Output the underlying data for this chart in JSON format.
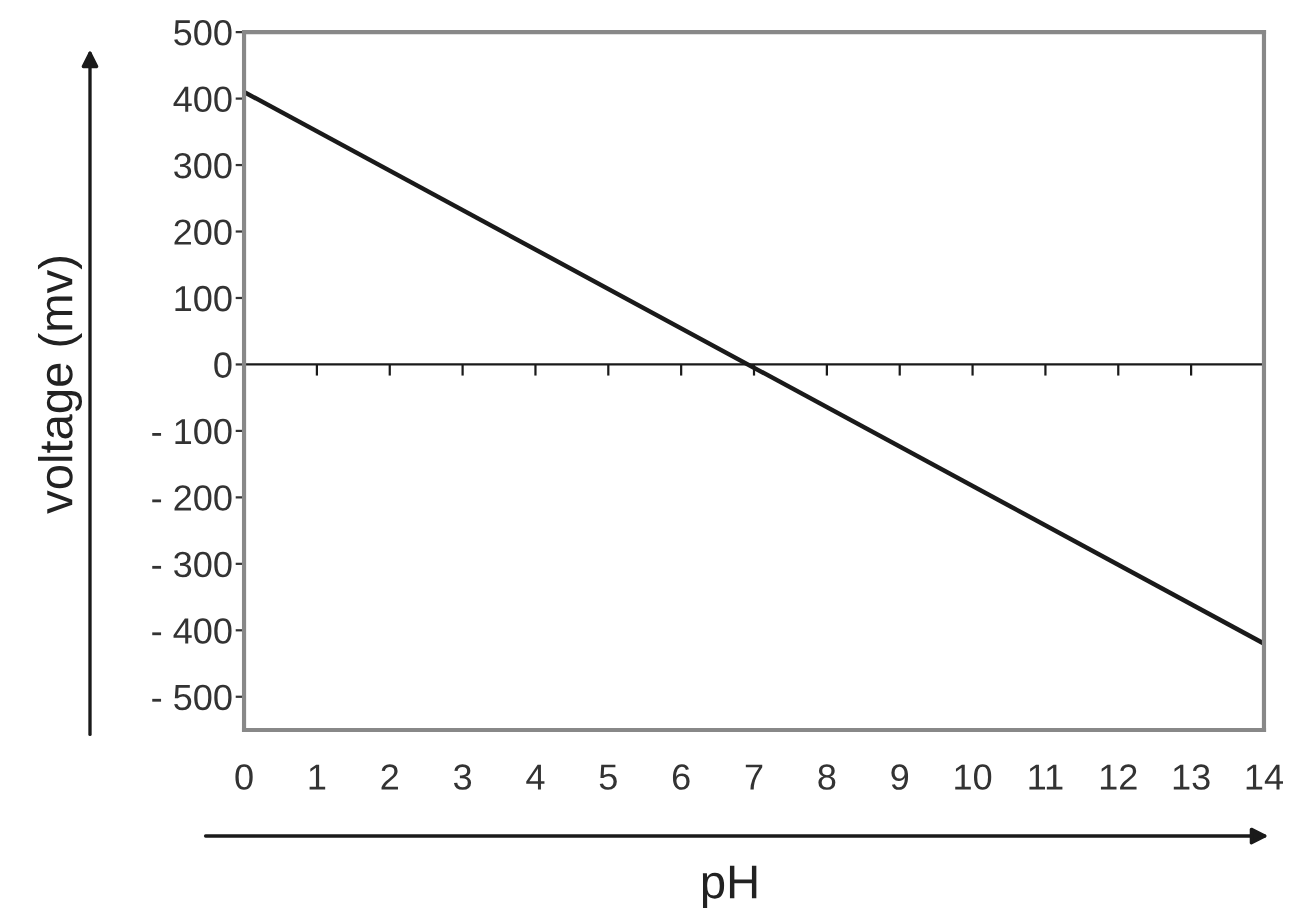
{
  "chart_data": {
    "type": "line",
    "xlabel": "pH",
    "ylabel": "voltage (mv)",
    "x": [
      0,
      14
    ],
    "series": [
      {
        "color": "#1a1a1a",
        "values": [
          410,
          -420
        ]
      }
    ],
    "xlim": [
      0,
      14
    ],
    "xticks": [
      0,
      1,
      2,
      3,
      4,
      5,
      6,
      7,
      8,
      9,
      10,
      11,
      12,
      13,
      14
    ],
    "ylim": [
      -550,
      500
    ],
    "yticks": [
      {
        "value": -500,
        "label": "- 500"
      },
      {
        "value": -400,
        "label": "- 400"
      },
      {
        "value": -300,
        "label": "- 300"
      },
      {
        "value": -200,
        "label": "- 200"
      },
      {
        "value": -100,
        "label": "- 100"
      },
      0,
      100,
      200,
      300,
      400,
      500
    ],
    "ref_lines": [
      {
        "axis": "y",
        "value": 0,
        "color": "#1a1a1a"
      }
    ],
    "grid": false,
    "legend": false,
    "marker": "none",
    "line_style": "solid"
  }
}
